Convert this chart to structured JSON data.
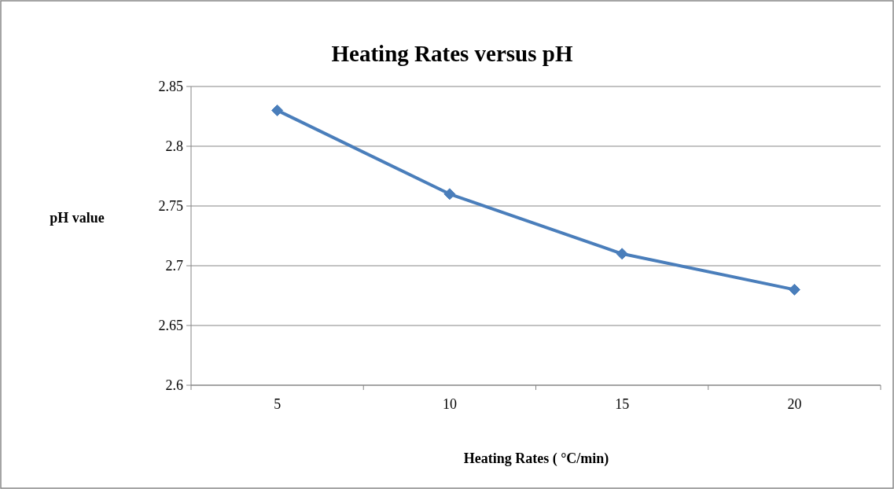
{
  "chart_data": {
    "type": "line",
    "title": "Heating Rates versus pH",
    "xlabel": "Heating Rates ( °C/min)",
    "ylabel": "pH value",
    "categories": [
      "5",
      "10",
      "15",
      "20"
    ],
    "series": [
      {
        "color": "#4a7ebb",
        "values": [
          2.83,
          2.76,
          2.71,
          2.68
        ]
      }
    ],
    "ylim": [
      2.6,
      2.85
    ],
    "yticks": [
      2.6,
      2.65,
      2.7,
      2.75,
      2.8,
      2.85
    ],
    "grid": "y",
    "marker": "diamond",
    "line_style": "solid"
  }
}
